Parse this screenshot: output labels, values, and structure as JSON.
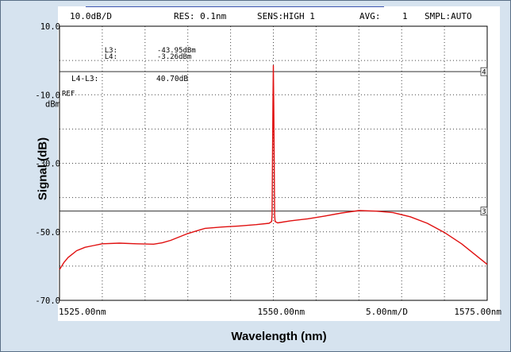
{
  "chart_data": {
    "type": "line",
    "xlabel": "Wavelength (nm)",
    "ylabel": "Signal (dB)",
    "xlim": [
      1525.0,
      1575.0
    ],
    "ylim": [
      -70.0,
      10.0
    ],
    "grid": true,
    "header": {
      "scale": "10.0dB/D",
      "res": "RES: 0.1nm",
      "sens": "SENS:HIGH 1",
      "avg_label": "AVG:",
      "avg_value": "1",
      "smpl": "SMPL:AUTO"
    },
    "y_ticks": [
      {
        "value": 10,
        "label": "10.0"
      },
      {
        "value": -10,
        "label": "-10.0"
      },
      {
        "value": -30,
        "label": "-30.0"
      },
      {
        "value": -50,
        "label": "-50.0"
      },
      {
        "value": -70,
        "label": "-70.0"
      }
    ],
    "y_unit": "dBm",
    "ref_label": "REF",
    "x_tick_labels": {
      "left": "1525.00nm",
      "center": "1550.00nm",
      "span": "5.00nm/D",
      "right": "1575.00nm"
    },
    "markers": {
      "l3_label": "L3:",
      "l3_value": "-43.95dBm",
      "l4_label": "L4:",
      "l4_value": "-3.26dBm",
      "diff_label": "L4-L3:",
      "diff_value": "40.70dB",
      "line4": {
        "y": -3.26,
        "tag": "4"
      },
      "line3": {
        "y": -43.95,
        "tag": "3"
      }
    },
    "series": [
      {
        "color": "#e01010",
        "x": [
          1525.0,
          1525.5,
          1526.0,
          1526.5,
          1527.0,
          1528.0,
          1529.0,
          1530.0,
          1532.0,
          1534.0,
          1536.0,
          1537.0,
          1538.0,
          1540.0,
          1542.0,
          1544.0,
          1546.0,
          1548.0,
          1549.5,
          1549.8,
          1549.85,
          1549.9,
          1549.95,
          1550.0,
          1550.05,
          1550.1,
          1550.15,
          1550.2,
          1550.5,
          1552.0,
          1554.0,
          1556.0,
          1558.0,
          1560.0,
          1562.0,
          1564.0,
          1566.0,
          1568.0,
          1570.0,
          1572.0,
          1574.0,
          1575.0
        ],
        "y": [
          -61.0,
          -59.0,
          -57.5,
          -56.5,
          -55.5,
          -54.5,
          -54.0,
          -53.5,
          -53.3,
          -53.5,
          -53.6,
          -53.2,
          -52.5,
          -50.5,
          -49.0,
          -48.6,
          -48.3,
          -47.9,
          -47.5,
          -47.0,
          -45.0,
          -30.0,
          -12.0,
          -1.5,
          -13.0,
          -30.0,
          -45.0,
          -47.0,
          -47.4,
          -46.8,
          -46.2,
          -45.4,
          -44.5,
          -43.8,
          -43.95,
          -44.4,
          -45.6,
          -47.5,
          -50.2,
          -53.5,
          -57.5,
          -59.5
        ]
      }
    ]
  }
}
